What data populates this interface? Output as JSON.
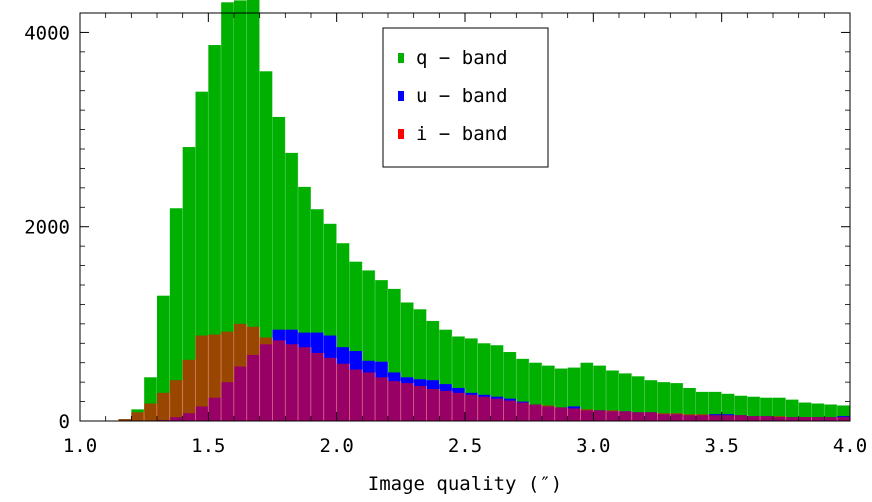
{
  "chart_data": {
    "type": "bar",
    "title": "",
    "xlabel": "Image quality (″)",
    "ylabel": "",
    "xlim": [
      1.0,
      4.0
    ],
    "ylim": [
      0,
      4200
    ],
    "bin_width": 0.05,
    "x_ticks": [
      1.0,
      1.5,
      2.0,
      2.5,
      3.0,
      3.5,
      4.0
    ],
    "x_tick_labels": [
      "1.0",
      "1.5",
      "2.0",
      "2.5",
      "3.0",
      "3.5",
      "4.0"
    ],
    "y_ticks": [
      0,
      2000,
      4000
    ],
    "y_tick_labels": [
      "0",
      "2000",
      "4000"
    ],
    "grid": false,
    "legend_position": "top-center",
    "x_bin_starts": [
      1.15,
      1.2,
      1.25,
      1.3,
      1.35,
      1.4,
      1.45,
      1.5,
      1.55,
      1.6,
      1.65,
      1.7,
      1.75,
      1.8,
      1.85,
      1.9,
      1.95,
      2.0,
      2.05,
      2.1,
      2.15,
      2.2,
      2.25,
      2.3,
      2.35,
      2.4,
      2.45,
      2.5,
      2.55,
      2.6,
      2.65,
      2.7,
      2.75,
      2.8,
      2.85,
      2.9,
      2.95,
      3.0,
      3.05,
      3.1,
      3.15,
      3.2,
      3.25,
      3.3,
      3.35,
      3.4,
      3.45,
      3.5,
      3.55,
      3.6,
      3.65,
      3.7,
      3.75,
      3.8,
      3.85,
      3.9,
      3.95
    ],
    "series": [
      {
        "name": "q − band",
        "color": "#00b000",
        "values": [
          20,
          120,
          450,
          1290,
          2190,
          2820,
          3390,
          3870,
          4310,
          4330,
          4340,
          3600,
          3130,
          2760,
          2410,
          2180,
          2030,
          1830,
          1640,
          1550,
          1450,
          1360,
          1220,
          1150,
          1030,
          940,
          870,
          850,
          800,
          780,
          710,
          640,
          600,
          570,
          540,
          550,
          600,
          570,
          520,
          490,
          460,
          420,
          400,
          390,
          340,
          300,
          300,
          280,
          260,
          250,
          240,
          240,
          220,
          190,
          180,
          170,
          160
        ]
      },
      {
        "name": "u − band",
        "color": "#0000ff",
        "values": [
          0,
          0,
          0,
          10,
          40,
          80,
          150,
          240,
          400,
          560,
          680,
          790,
          940,
          940,
          910,
          910,
          880,
          760,
          720,
          620,
          610,
          500,
          450,
          430,
          420,
          380,
          340,
          290,
          270,
          250,
          230,
          200,
          170,
          150,
          140,
          150,
          110,
          110,
          100,
          100,
          90,
          90,
          70,
          70,
          60,
          60,
          70,
          70,
          60,
          50,
          50,
          40,
          40,
          40,
          40,
          40,
          50
        ]
      },
      {
        "name": "i − band",
        "color": "#ff0000",
        "values": [
          20,
          90,
          180,
          290,
          420,
          630,
          880,
          890,
          920,
          1000,
          970,
          860,
          830,
          790,
          760,
          700,
          650,
          590,
          530,
          500,
          450,
          410,
          390,
          360,
          330,
          310,
          290,
          270,
          250,
          230,
          210,
          190,
          170,
          160,
          140,
          130,
          120,
          110,
          110,
          100,
          90,
          90,
          80,
          80,
          70,
          70,
          60,
          60,
          60,
          50,
          50,
          50,
          40,
          40,
          40,
          40,
          40
        ]
      }
    ]
  },
  "legend": {
    "items": [
      {
        "label": "q − band",
        "color": "#00b000"
      },
      {
        "label": "u − band",
        "color": "#0000ff"
      },
      {
        "label": "i − band",
        "color": "#ff0000"
      }
    ]
  }
}
